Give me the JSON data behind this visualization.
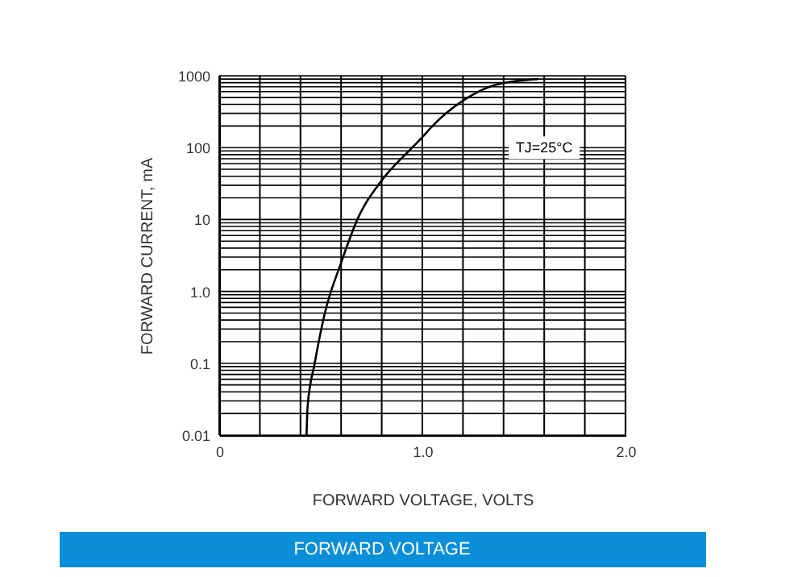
{
  "chart_data": {
    "type": "line",
    "title": "FORWARD VOLTAGE",
    "xlabel": "FORWARD VOLTAGE, VOLTS",
    "ylabel": "FORWARD CURRENT, mA",
    "x": [
      0.43,
      0.435,
      0.47,
      0.52,
      0.6,
      0.68,
      0.8,
      0.95,
      1.0,
      1.05,
      1.2,
      1.36,
      1.57
    ],
    "series": [
      {
        "color": "#000000",
        "values": [
          0.01,
          0.025,
          0.1,
          0.5,
          2.5,
          10,
          35,
          100,
          140,
          200,
          450,
          750,
          900
        ]
      }
    ],
    "log": "y",
    "xlim": [
      0,
      2
    ],
    "ylim": [
      0.01,
      1000
    ],
    "xticks": [
      0,
      {
        "value": 0.2,
        "label": null
      },
      {
        "value": 0.4,
        "label": null
      },
      {
        "value": 0.6,
        "label": null
      },
      {
        "value": 0.8,
        "label": null
      },
      {
        "value": 1,
        "label": "1.0"
      },
      {
        "value": 1.2,
        "label": null
      },
      {
        "value": 1.4,
        "label": null
      },
      {
        "value": 1.6,
        "label": null
      },
      {
        "value": 1.8,
        "label": null
      },
      {
        "value": 2,
        "label": "2.0"
      }
    ],
    "yticks": [
      0.01,
      0.1,
      {
        "value": 1,
        "label": "1.0"
      },
      10,
      100,
      1000
    ],
    "grid": true,
    "marker": "none",
    "line_style": "solid",
    "annotations": [
      "TJ=25°C"
    ]
  }
}
